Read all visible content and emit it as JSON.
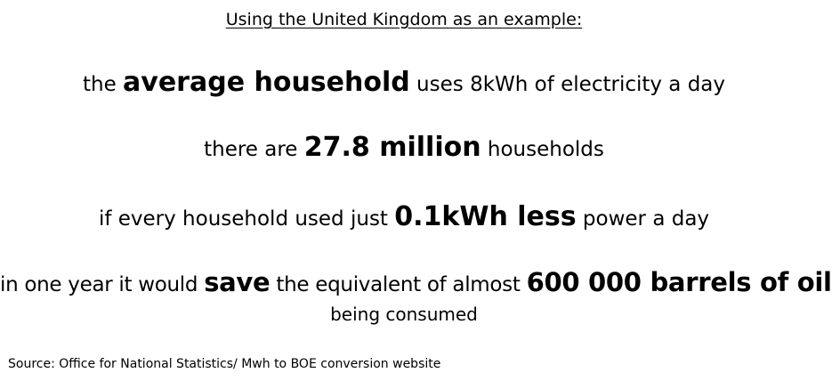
{
  "title": "Using the United Kingdom as an example:",
  "line1": {
    "pre": "the ",
    "emph": "average household",
    "post": " uses 8kWh of electricity a day"
  },
  "line2": {
    "pre": "there are ",
    "emph": "27.8 million",
    "post": " households"
  },
  "line3": {
    "pre": "if every household used just ",
    "emph": "0.1kWh less",
    "post": " power a day"
  },
  "line4": {
    "pre": "in one year it would ",
    "emph1": "save",
    "mid": " the equivalent of almost ",
    "emph2": "600 000 barrels of oil"
  },
  "line5": "being consumed",
  "source": "Source: Office for National Statistics/ Mwh to BOE conversion website"
}
